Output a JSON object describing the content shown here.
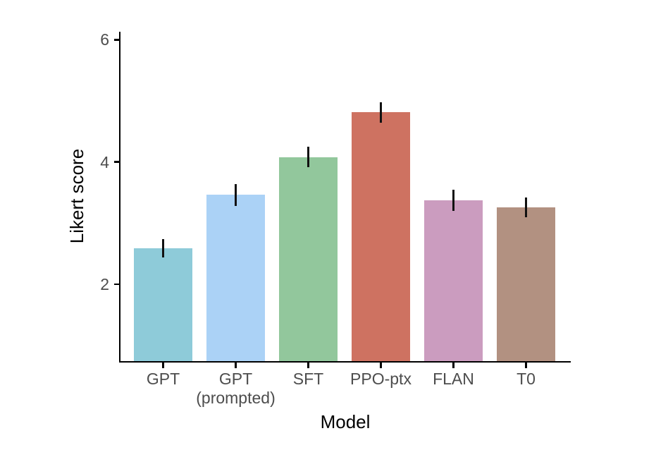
{
  "figure": {
    "background": "#ffffff"
  },
  "chart_data": {
    "type": "bar",
    "title": "",
    "xlabel": "Model",
    "ylabel": "Likert score",
    "categories": [
      "GPT",
      "GPT\n(prompted)",
      "SFT",
      "PPO-ptx",
      "FLAN",
      "T0"
    ],
    "values": [
      2.59,
      3.46,
      4.08,
      4.81,
      3.37,
      3.26
    ],
    "errors": [
      0.15,
      0.18,
      0.17,
      0.17,
      0.17,
      0.16
    ],
    "bar_colors": [
      "#8ecbd9",
      "#abd2f6",
      "#92c79c",
      "#ce7261",
      "#cb9cbf",
      "#b29181"
    ],
    "error_bar_color": "#111111",
    "axis_color": "#000000",
    "tick_label_color": "#4d4d4d",
    "axis_title_color": "#000000",
    "yticks": [
      2,
      4,
      6
    ],
    "ylim": [
      0.74,
      6.13
    ],
    "grid": false,
    "legend": false
  }
}
